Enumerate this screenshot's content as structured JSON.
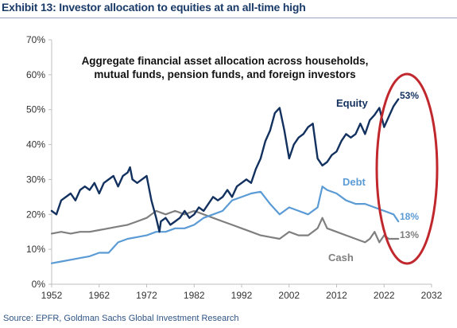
{
  "header": {
    "title": "Exhibit 13: Investor allocation to equities at an all-time high"
  },
  "footer": {
    "source": "Source: EPFR, Goldman Sachs Global Investment Research"
  },
  "colors": {
    "equity": "#13315f",
    "debt": "#5b9bd5",
    "cash": "#7f7f7f",
    "highlight": "#c0282e",
    "axis": "#bfbfbf",
    "title": "#1a3a68"
  },
  "chart_data": {
    "type": "line",
    "title": "Aggregate financial asset allocation across households, mutual funds, pension funds, and foreign investors",
    "title_lines": [
      "Aggregate financial asset allocation across households,",
      "mutual funds, pension funds, and foreign investors"
    ],
    "xlim": [
      1952,
      2032
    ],
    "ylim": [
      0,
      0.7
    ],
    "x_ticks": [
      1952,
      1962,
      1972,
      1982,
      1992,
      2002,
      2012,
      2022,
      2032
    ],
    "x_tick_labels": [
      "1952",
      "1962",
      "1972",
      "1982",
      "1992",
      "2002",
      "2012",
      "2022",
      "2032"
    ],
    "y_ticks": [
      0,
      0.1,
      0.2,
      0.3,
      0.4,
      0.5,
      0.6,
      0.7
    ],
    "y_tick_labels": [
      "0%",
      "10%",
      "20%",
      "30%",
      "40%",
      "50%",
      "60%",
      "70%"
    ],
    "grid": false,
    "legend": "none",
    "series": [
      {
        "name": "Equity",
        "end_label": "53%",
        "x": [
          1952,
          1953,
          1954,
          1955,
          1956,
          1957,
          1958,
          1959,
          1960,
          1961,
          1962,
          1963,
          1964,
          1965,
          1966,
          1967,
          1968,
          1968.5,
          1969,
          1970,
          1971,
          1972,
          1973,
          1974,
          1974.7,
          1975,
          1976,
          1977,
          1978,
          1979,
          1980,
          1981,
          1982,
          1983,
          1984,
          1985,
          1986,
          1987,
          1988,
          1989,
          1990,
          1991,
          1992,
          1993,
          1994,
          1995,
          1996,
          1997,
          1998,
          1999,
          2000,
          2001,
          2002,
          2003,
          2004,
          2005,
          2006,
          2007,
          2008,
          2009,
          2010,
          2011,
          2012,
          2013,
          2014,
          2015,
          2016,
          2017,
          2018,
          2019,
          2020,
          2021,
          2022,
          2023,
          2024,
          2025
        ],
        "y": [
          0.21,
          0.2,
          0.24,
          0.25,
          0.26,
          0.24,
          0.27,
          0.28,
          0.27,
          0.29,
          0.26,
          0.29,
          0.3,
          0.31,
          0.28,
          0.31,
          0.32,
          0.335,
          0.3,
          0.29,
          0.3,
          0.31,
          0.24,
          0.19,
          0.15,
          0.18,
          0.19,
          0.17,
          0.18,
          0.19,
          0.21,
          0.19,
          0.2,
          0.22,
          0.21,
          0.23,
          0.25,
          0.24,
          0.25,
          0.27,
          0.25,
          0.28,
          0.29,
          0.3,
          0.29,
          0.33,
          0.36,
          0.41,
          0.44,
          0.49,
          0.505,
          0.44,
          0.36,
          0.4,
          0.42,
          0.43,
          0.45,
          0.46,
          0.36,
          0.34,
          0.35,
          0.37,
          0.38,
          0.41,
          0.43,
          0.42,
          0.43,
          0.46,
          0.43,
          0.47,
          0.485,
          0.505,
          0.45,
          0.48,
          0.51,
          0.53
        ]
      },
      {
        "name": "Debt",
        "end_label": "18%",
        "x": [
          1952,
          1954,
          1956,
          1958,
          1960,
          1962,
          1964,
          1966,
          1968,
          1970,
          1972,
          1974,
          1976,
          1978,
          1980,
          1982,
          1984,
          1986,
          1988,
          1990,
          1992,
          1994,
          1996,
          1998,
          2000,
          2002,
          2004,
          2006,
          2008,
          2009,
          2010,
          2012,
          2014,
          2016,
          2018,
          2020,
          2022,
          2024,
          2025
        ],
        "y": [
          0.06,
          0.065,
          0.07,
          0.075,
          0.08,
          0.09,
          0.09,
          0.12,
          0.13,
          0.135,
          0.14,
          0.15,
          0.15,
          0.16,
          0.16,
          0.17,
          0.19,
          0.2,
          0.21,
          0.24,
          0.25,
          0.26,
          0.265,
          0.23,
          0.2,
          0.22,
          0.21,
          0.2,
          0.22,
          0.28,
          0.27,
          0.26,
          0.24,
          0.23,
          0.23,
          0.22,
          0.21,
          0.2,
          0.18
        ]
      },
      {
        "name": "Cash",
        "end_label": "13%",
        "x": [
          1952,
          1954,
          1956,
          1958,
          1960,
          1962,
          1964,
          1966,
          1968,
          1970,
          1972,
          1974,
          1976,
          1978,
          1980,
          1982,
          1984,
          1986,
          1988,
          1990,
          1992,
          1994,
          1996,
          1998,
          2000,
          2002,
          2004,
          2006,
          2008,
          2009,
          2010,
          2012,
          2014,
          2016,
          2018,
          2019,
          2020,
          2021,
          2022,
          2023,
          2024,
          2025
        ],
        "y": [
          0.145,
          0.15,
          0.145,
          0.15,
          0.15,
          0.155,
          0.16,
          0.165,
          0.17,
          0.18,
          0.19,
          0.21,
          0.2,
          0.21,
          0.2,
          0.21,
          0.2,
          0.19,
          0.18,
          0.17,
          0.16,
          0.15,
          0.14,
          0.135,
          0.13,
          0.15,
          0.14,
          0.14,
          0.16,
          0.19,
          0.16,
          0.15,
          0.14,
          0.13,
          0.12,
          0.13,
          0.15,
          0.12,
          0.14,
          0.13,
          0.13,
          0.13
        ]
      }
    ],
    "annotations": [
      {
        "text": "Equity",
        "series": "Equity"
      },
      {
        "text": "Debt",
        "series": "Debt"
      },
      {
        "text": "Cash",
        "series": "Cash"
      }
    ]
  }
}
